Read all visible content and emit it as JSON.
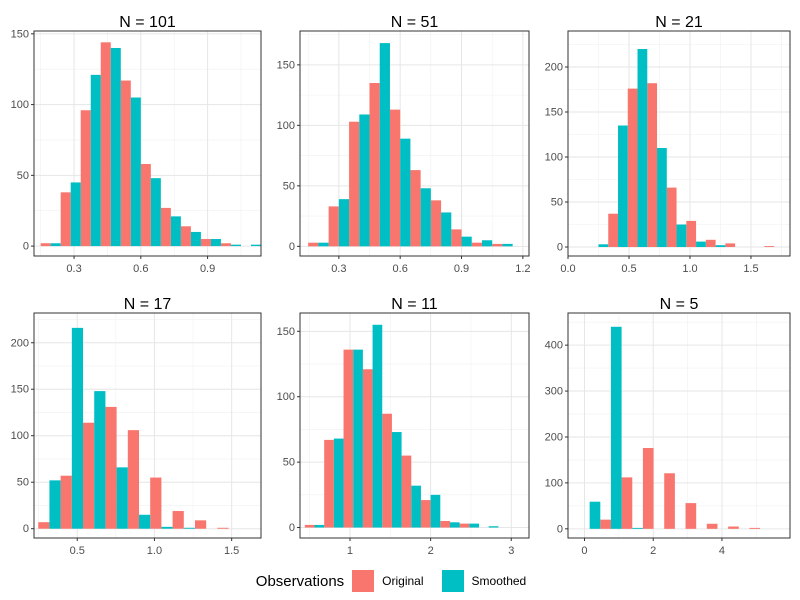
{
  "chart_data": [
    {
      "type": "bar",
      "title": "N = 101",
      "xlim": [
        0.12,
        1.14
      ],
      "ylim": [
        -7,
        152
      ],
      "xticks": [
        {
          "v": 0.3,
          "label": "0.3"
        },
        {
          "v": 0.6,
          "label": "0.6"
        },
        {
          "v": 0.9,
          "label": "0.9"
        }
      ],
      "yticks": [
        {
          "v": 0,
          "label": "0"
        },
        {
          "v": 50,
          "label": "50"
        },
        {
          "v": 100,
          "label": "100"
        },
        {
          "v": 150,
          "label": "150"
        }
      ],
      "binwidth": 0.09,
      "bins": [
        0.195,
        0.285,
        0.375,
        0.465,
        0.555,
        0.645,
        0.735,
        0.825,
        0.915,
        1.005,
        1.095
      ],
      "series": [
        {
          "name": "Original",
          "color": "#F8766D",
          "values": [
            2,
            38,
            96,
            144,
            117,
            58,
            27,
            14,
            5,
            2,
            0
          ]
        },
        {
          "name": "Smoothed",
          "color": "#00BFC4",
          "values": [
            2,
            45,
            121,
            140,
            105,
            48,
            21,
            10,
            5,
            1,
            1
          ]
        }
      ]
    },
    {
      "type": "bar",
      "title": "N = 51",
      "xlim": [
        0.11,
        1.23
      ],
      "ylim": [
        -8,
        178
      ],
      "xticks": [
        {
          "v": 0.3,
          "label": "0.3"
        },
        {
          "v": 0.6,
          "label": "0.6"
        },
        {
          "v": 0.9,
          "label": "0.9"
        },
        {
          "v": 1.2,
          "label": "1.2"
        }
      ],
      "yticks": [
        {
          "v": 0,
          "label": "0"
        },
        {
          "v": 50,
          "label": "50"
        },
        {
          "v": 100,
          "label": "100"
        },
        {
          "v": 150,
          "label": "150"
        }
      ],
      "binwidth": 0.1,
      "bins": [
        0.2,
        0.3,
        0.4,
        0.5,
        0.6,
        0.7,
        0.8,
        0.9,
        1.0,
        1.1
      ],
      "series": [
        {
          "name": "Original",
          "color": "#F8766D",
          "values": [
            3,
            33,
            103,
            135,
            113,
            63,
            38,
            14,
            3,
            2
          ]
        },
        {
          "name": "Smoothed",
          "color": "#00BFC4",
          "values": [
            3,
            39,
            109,
            168,
            89,
            48,
            28,
            8,
            5,
            2
          ]
        }
      ]
    },
    {
      "type": "bar",
      "title": "N = 21",
      "xlim": [
        0,
        1.82
      ],
      "ylim": [
        -10,
        240
      ],
      "xticks": [
        {
          "v": 0,
          "label": "0.0"
        },
        {
          "v": 0.5,
          "label": "0.5"
        },
        {
          "v": 1.0,
          "label": "1.0"
        },
        {
          "v": 1.5,
          "label": "1.5"
        }
      ],
      "yticks": [
        {
          "v": 0,
          "label": "0"
        },
        {
          "v": 50,
          "label": "50"
        },
        {
          "v": 100,
          "label": "100"
        },
        {
          "v": 150,
          "label": "150"
        },
        {
          "v": 200,
          "label": "200"
        }
      ],
      "binwidth": 0.16,
      "bins": [
        0.25,
        0.41,
        0.57,
        0.73,
        0.89,
        1.05,
        1.21,
        1.37,
        1.53,
        1.69
      ],
      "series": [
        {
          "name": "Original",
          "color": "#F8766D",
          "values": [
            0,
            37,
            176,
            182,
            66,
            29,
            8,
            4,
            0,
            1
          ]
        },
        {
          "name": "Smoothed",
          "color": "#00BFC4",
          "values": [
            3,
            135,
            220,
            110,
            25,
            6,
            2,
            0,
            0,
            0
          ]
        }
      ]
    },
    {
      "type": "bar",
      "title": "N = 17",
      "xlim": [
        0.22,
        1.69
      ],
      "ylim": [
        -10,
        232
      ],
      "xticks": [
        {
          "v": 0.5,
          "label": "0.5"
        },
        {
          "v": 1.0,
          "label": "1.0"
        },
        {
          "v": 1.5,
          "label": "1.5"
        }
      ],
      "yticks": [
        {
          "v": 0,
          "label": "0"
        },
        {
          "v": 50,
          "label": "50"
        },
        {
          "v": 100,
          "label": "100"
        },
        {
          "v": 150,
          "label": "150"
        },
        {
          "v": 200,
          "label": "200"
        }
      ],
      "binwidth": 0.145,
      "bins": [
        0.32,
        0.465,
        0.61,
        0.755,
        0.9,
        1.045,
        1.19,
        1.335,
        1.48
      ],
      "series": [
        {
          "name": "Original",
          "color": "#F8766D",
          "values": [
            7,
            57,
            114,
            131,
            106,
            55,
            19,
            9,
            1
          ]
        },
        {
          "name": "Smoothed",
          "color": "#00BFC4",
          "values": [
            52,
            216,
            148,
            66,
            15,
            2,
            1,
            0,
            0
          ]
        }
      ]
    },
    {
      "type": "bar",
      "title": "N = 11",
      "xlim": [
        0.38,
        3.22
      ],
      "ylim": [
        -8,
        164
      ],
      "xticks": [
        {
          "v": 1,
          "label": "1"
        },
        {
          "v": 2,
          "label": "2"
        },
        {
          "v": 3,
          "label": "3"
        }
      ],
      "yticks": [
        {
          "v": 0,
          "label": "0"
        },
        {
          "v": 50,
          "label": "50"
        },
        {
          "v": 100,
          "label": "100"
        },
        {
          "v": 150,
          "label": "150"
        }
      ],
      "binwidth": 0.24,
      "bins": [
        0.56,
        0.8,
        1.04,
        1.28,
        1.52,
        1.76,
        2.0,
        2.24,
        2.48,
        2.72,
        2.96
      ],
      "series": [
        {
          "name": "Original",
          "color": "#F8766D",
          "values": [
            2,
            67,
            136,
            121,
            87,
            55,
            21,
            5,
            3,
            0,
            0
          ]
        },
        {
          "name": "Smoothed",
          "color": "#00BFC4",
          "values": [
            2,
            68,
            136,
            155,
            73,
            32,
            25,
            4,
            3,
            1,
            0
          ]
        }
      ]
    },
    {
      "type": "bar",
      "title": "N = 5",
      "xlim": [
        -0.48,
        5.98
      ],
      "ylim": [
        -20,
        470
      ],
      "xticks": [
        {
          "v": 0,
          "label": "0"
        },
        {
          "v": 2,
          "label": "2"
        },
        {
          "v": 4,
          "label": "4"
        }
      ],
      "yticks": [
        {
          "v": 0,
          "label": "0"
        },
        {
          "v": 100,
          "label": "100"
        },
        {
          "v": 200,
          "label": "200"
        },
        {
          "v": 300,
          "label": "300"
        },
        {
          "v": 400,
          "label": "400"
        }
      ],
      "binwidth": 0.62,
      "bins": [
        0.15,
        0.77,
        1.39,
        2.01,
        2.63,
        3.25,
        3.87,
        4.49,
        5.11
      ],
      "series": [
        {
          "name": "Original",
          "color": "#F8766D",
          "values": [
            0,
            20,
            112,
            176,
            121,
            56,
            11,
            5,
            2
          ]
        },
        {
          "name": "Smoothed",
          "color": "#00BFC4",
          "values": [
            59,
            440,
            2,
            0,
            0,
            0,
            0,
            0,
            0
          ]
        }
      ]
    }
  ],
  "legend": {
    "title": "Observations",
    "items": [
      {
        "label": "Original",
        "color": "#F8766D"
      },
      {
        "label": "Smoothed",
        "color": "#00BFC4"
      }
    ]
  }
}
